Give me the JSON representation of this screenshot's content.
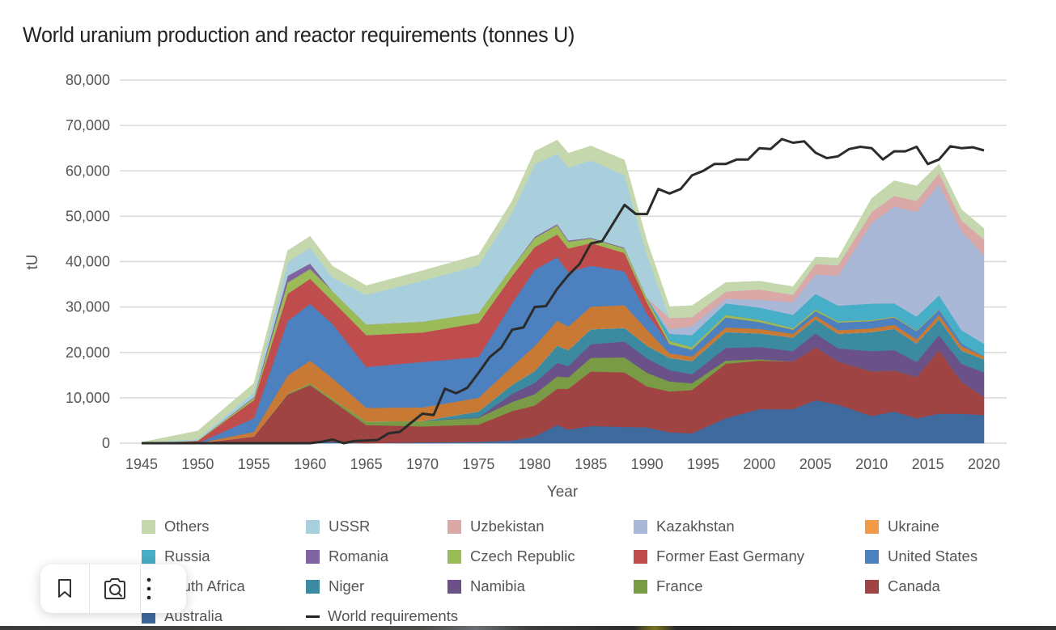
{
  "chart_data": {
    "type": "area",
    "stacked": true,
    "title": "World uranium production and reactor requirements (tonnes U)",
    "xlabel": "Year",
    "ylabel": "tU",
    "xlim": [
      1945,
      2020
    ],
    "ylim": [
      0,
      80000
    ],
    "x_ticks": [
      "1945",
      "1950",
      "1955",
      "1960",
      "1965",
      "1970",
      "1975",
      "1980",
      "1985",
      "1990",
      "1995",
      "2000",
      "2005",
      "2010",
      "2015",
      "2020"
    ],
    "y_ticks": [
      "0",
      "10,000",
      "20,000",
      "30,000",
      "40,000",
      "50,000",
      "60,000",
      "70,000",
      "80,000"
    ],
    "grid": true,
    "legend_position": "bottom",
    "x": [
      1945,
      1950,
      1955,
      1958,
      1960,
      1962,
      1965,
      1970,
      1975,
      1978,
      1980,
      1982,
      1983,
      1985,
      1988,
      1990,
      1992,
      1994,
      1997,
      2000,
      2003,
      2005,
      2007,
      2010,
      2012,
      2014,
      2016,
      2018,
      2020
    ],
    "series": [
      {
        "name": "Australia",
        "color": "#3f6a9d",
        "values": [
          0,
          0,
          0,
          200,
          300,
          300,
          0,
          200,
          300,
          600,
          1500,
          4000,
          3000,
          3800,
          3600,
          3500,
          2400,
          2200,
          5500,
          7500,
          7500,
          9500,
          8500,
          6000,
          7000,
          5500,
          6500,
          6500,
          6200
        ]
      },
      {
        "name": "Canada",
        "color": "#a04343",
        "values": [
          0,
          0,
          1500,
          10500,
          12500,
          9000,
          4000,
          3500,
          3800,
          6500,
          6800,
          8000,
          9000,
          12000,
          12000,
          9000,
          9000,
          9500,
          12000,
          10700,
          10500,
          11600,
          9500,
          9800,
          9000,
          9100,
          14000,
          7000,
          4000
        ]
      },
      {
        "name": "France",
        "color": "#7a9b46",
        "values": [
          0,
          0,
          0,
          200,
          400,
          500,
          800,
          1200,
          1500,
          2000,
          2500,
          2700,
          2500,
          3000,
          3300,
          3000,
          2200,
          1500,
          700,
          300,
          0,
          0,
          0,
          0,
          0,
          0,
          0,
          0,
          0
        ]
      },
      {
        "name": "Namibia",
        "color": "#6a5289",
        "values": [
          0,
          0,
          0,
          0,
          0,
          0,
          0,
          0,
          100,
          1800,
          2500,
          3000,
          2500,
          3000,
          3500,
          3200,
          2500,
          2000,
          2800,
          2700,
          2300,
          3100,
          2900,
          4500,
          4500,
          3300,
          3300,
          4000,
          5400
        ]
      },
      {
        "name": "Niger",
        "color": "#3b8aa0",
        "values": [
          0,
          0,
          0,
          0,
          0,
          0,
          0,
          0,
          1300,
          2000,
          2600,
          3800,
          3500,
          3300,
          3000,
          2800,
          2700,
          2900,
          3500,
          3000,
          3000,
          3100,
          3200,
          4200,
          4700,
          4100,
          3500,
          2900,
          2900
        ]
      },
      {
        "name": "South Africa",
        "color": "#f5e6de",
        "values": [
          0,
          0,
          0,
          0,
          0,
          0,
          0,
          0,
          0,
          0,
          0,
          0,
          0,
          0,
          0,
          0,
          0,
          0,
          0,
          0,
          0,
          0,
          0,
          0,
          0,
          0,
          0,
          0,
          0
        ]
      },
      {
        "name": "Ukraine",
        "color": "#c87a35",
        "values": [
          0,
          0,
          1000,
          4000,
          5000,
          4500,
          3000,
          3000,
          3000,
          4000,
          5500,
          5500,
          5200,
          5000,
          5000,
          3500,
          1000,
          1000,
          1000,
          1000,
          800,
          800,
          800,
          800,
          900,
          900,
          1000,
          1000,
          600
        ]
      },
      {
        "name": "United States",
        "color": "#4d80be",
        "values": [
          0,
          0,
          3000,
          12000,
          12500,
          12000,
          9000,
          10000,
          9000,
          14000,
          16800,
          14000,
          12000,
          9000,
          7500,
          3500,
          2000,
          1500,
          2200,
          1500,
          900,
          1000,
          1700,
          1600,
          1600,
          1800,
          1100,
          600,
          0
        ]
      },
      {
        "name": "Former East Germany",
        "color": "#c04d4d",
        "values": [
          0,
          500,
          4000,
          6000,
          5500,
          5000,
          7000,
          6500,
          7500,
          6000,
          5000,
          5000,
          5200,
          5000,
          4000,
          2500,
          0,
          0,
          0,
          0,
          0,
          0,
          0,
          0,
          0,
          0,
          0,
          0,
          0
        ]
      },
      {
        "name": "Czech Republic",
        "color": "#9bbb59",
        "values": [
          0,
          100,
          500,
          2500,
          2200,
          2200,
          2400,
          2400,
          2200,
          1900,
          2000,
          2000,
          1500,
          1000,
          1000,
          900,
          800,
          600,
          600,
          500,
          400,
          400,
          300,
          250,
          230,
          200,
          150,
          0,
          0
        ]
      },
      {
        "name": "Romania",
        "color": "#8064a2",
        "values": [
          0,
          0,
          200,
          1500,
          1200,
          0,
          0,
          0,
          0,
          100,
          300,
          300,
          300,
          200,
          200,
          100,
          0,
          0,
          0,
          0,
          0,
          0,
          0,
          0,
          0,
          0,
          0,
          0,
          0
        ]
      },
      {
        "name": "Russia",
        "color": "#46aec6",
        "values": [
          0,
          0,
          0,
          0,
          0,
          0,
          0,
          0,
          0,
          0,
          0,
          0,
          0,
          0,
          0,
          0,
          1500,
          2600,
          2500,
          2700,
          2900,
          3400,
          3400,
          3600,
          2900,
          3000,
          3000,
          2900,
          2800
        ]
      },
      {
        "name": "Kazakhstan",
        "color": "#a9b8d6",
        "values": [
          0,
          0,
          0,
          0,
          0,
          0,
          0,
          0,
          0,
          0,
          0,
          0,
          0,
          0,
          0,
          0,
          1000,
          2000,
          1000,
          1700,
          2800,
          4300,
          6600,
          17800,
          21300,
          23100,
          24600,
          21800,
          19500
        ]
      },
      {
        "name": "Uzbekistan",
        "color": "#dba8a8",
        "values": [
          0,
          0,
          0,
          0,
          0,
          0,
          0,
          0,
          0,
          0,
          0,
          0,
          0,
          0,
          0,
          0,
          2500,
          2000,
          1600,
          2300,
          1600,
          2300,
          2300,
          2400,
          2400,
          2400,
          2400,
          2400,
          3500
        ]
      },
      {
        "name": "USSR",
        "color": "#a9cfdd",
        "values": [
          0,
          300,
          1000,
          3000,
          3500,
          3000,
          6500,
          9000,
          10500,
          12000,
          16000,
          15500,
          16000,
          17000,
          16000,
          9500,
          0,
          0,
          0,
          0,
          0,
          0,
          0,
          0,
          0,
          0,
          0,
          0,
          0
        ]
      },
      {
        "name": "Others",
        "color": "#c5d8ad",
        "values": [
          200,
          1800,
          2000,
          2500,
          2500,
          2500,
          2000,
          2200,
          2300,
          2500,
          2800,
          3000,
          3200,
          3200,
          3300,
          3000,
          2500,
          2500,
          2000,
          1800,
          1800,
          1500,
          1600,
          3000,
          3300,
          3300,
          2000,
          2400,
          2400
        ]
      }
    ],
    "line_series": {
      "name": "World requirements",
      "color": "#2b2b2b",
      "x": [
        1945,
        1960,
        1961,
        1962,
        1963,
        1964,
        1966,
        1967,
        1968,
        1969,
        1970,
        1971,
        1972,
        1973,
        1974,
        1975,
        1976,
        1977,
        1978,
        1979,
        1980,
        1981,
        1982,
        1983,
        1984,
        1985,
        1986,
        1987,
        1988,
        1989,
        1990,
        1991,
        1992,
        1993,
        1994,
        1995,
        1996,
        1997,
        1998,
        1999,
        2000,
        2001,
        2002,
        2003,
        2004,
        2005,
        2006,
        2007,
        2008,
        2009,
        2010,
        2011,
        2012,
        2013,
        2014,
        2015,
        2016,
        2017,
        2018,
        2019,
        2020
      ],
      "values": [
        0,
        0,
        300,
        800,
        0,
        500,
        700,
        2200,
        2500,
        4500,
        6500,
        6200,
        12000,
        11000,
        12200,
        15500,
        19000,
        21000,
        25000,
        25500,
        30000,
        30200,
        34000,
        37000,
        39500,
        44000,
        44500,
        48500,
        52500,
        50500,
        50500,
        56000,
        55000,
        56000,
        59000,
        60000,
        61500,
        61500,
        62500,
        62500,
        65000,
        64800,
        67000,
        66200,
        66500,
        64000,
        62800,
        63200,
        64800,
        65300,
        65000,
        62500,
        64300,
        64300,
        65300,
        61500,
        62500,
        65400,
        65000,
        65200,
        64500
      ]
    }
  },
  "legend": [
    {
      "label": "Others",
      "color": "#c5d8ad"
    },
    {
      "label": "USSR",
      "color": "#a9cfdd"
    },
    {
      "label": "Uzbekistan",
      "color": "#dba8a8"
    },
    {
      "label": "Kazakhstan",
      "color": "#a9b8d6"
    },
    {
      "label": "Ukraine",
      "color": "#f39a48"
    },
    {
      "label": "Russia",
      "color": "#46aec6"
    },
    {
      "label": "Romania",
      "color": "#8064a2"
    },
    {
      "label": "Czech Republic",
      "color": "#9bbb59"
    },
    {
      "label": "Former East Germany",
      "color": "#c04d4d"
    },
    {
      "label": "United States",
      "color": "#4d80be"
    },
    {
      "label": "South Africa",
      "color": "#f5e6de"
    },
    {
      "label": "Niger",
      "color": "#3b8aa0"
    },
    {
      "label": "Namibia",
      "color": "#6a5289"
    },
    {
      "label": "France",
      "color": "#7a9b46"
    },
    {
      "label": "Canada",
      "color": "#a04343"
    },
    {
      "label": "Australia",
      "color": "#3f6a9d"
    },
    {
      "label": "World requirements",
      "color": "#222222",
      "line": true
    }
  ],
  "toolbar": {
    "buttons": [
      {
        "icon": "bookmark-icon"
      },
      {
        "icon": "lens-search-icon"
      },
      {
        "icon": "more-vertical-icon"
      }
    ]
  }
}
